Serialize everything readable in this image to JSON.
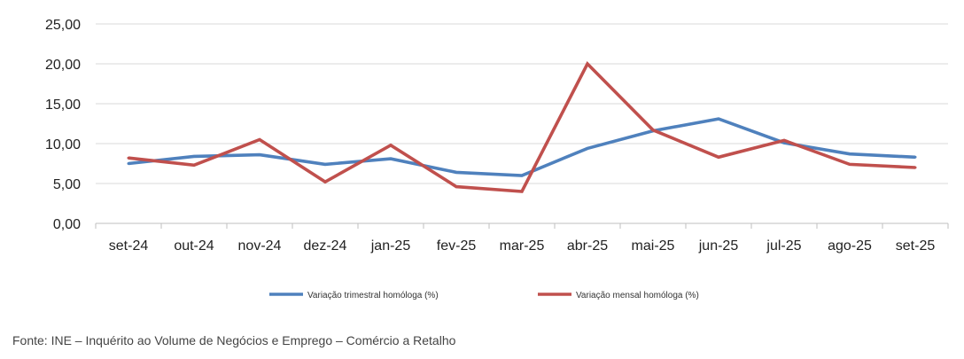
{
  "chart_data": {
    "type": "line",
    "title": "",
    "xlabel": "",
    "ylabel": "",
    "categories": [
      "set-24",
      "out-24",
      "nov-24",
      "dez-24",
      "jan-25",
      "fev-25",
      "mar-25",
      "abr-25",
      "mai-25",
      "jun-25",
      "jul-25",
      "ago-25",
      "set-25"
    ],
    "y_ticks": [
      "0,00",
      "5,00",
      "10,00",
      "15,00",
      "20,00",
      "25,00"
    ],
    "ylim": [
      0,
      25
    ],
    "grid": true,
    "legend_position": "bottom",
    "series": [
      {
        "name": "Variação trimestral homóloga (%)",
        "color": "#4f81bd",
        "values": [
          7.5,
          8.4,
          8.6,
          7.4,
          8.1,
          6.4,
          6.0,
          9.4,
          11.6,
          13.1,
          10.1,
          8.7,
          8.3
        ]
      },
      {
        "name": "Variação mensal homóloga (%)",
        "color": "#c0504d",
        "values": [
          8.2,
          7.3,
          10.5,
          5.2,
          9.8,
          4.6,
          4.0,
          20.0,
          11.7,
          8.3,
          10.4,
          7.4,
          7.0
        ]
      }
    ]
  },
  "source_note": "Fonte: INE – Inquérito ao Volume de Negócios e Emprego – Comércio a Retalho"
}
